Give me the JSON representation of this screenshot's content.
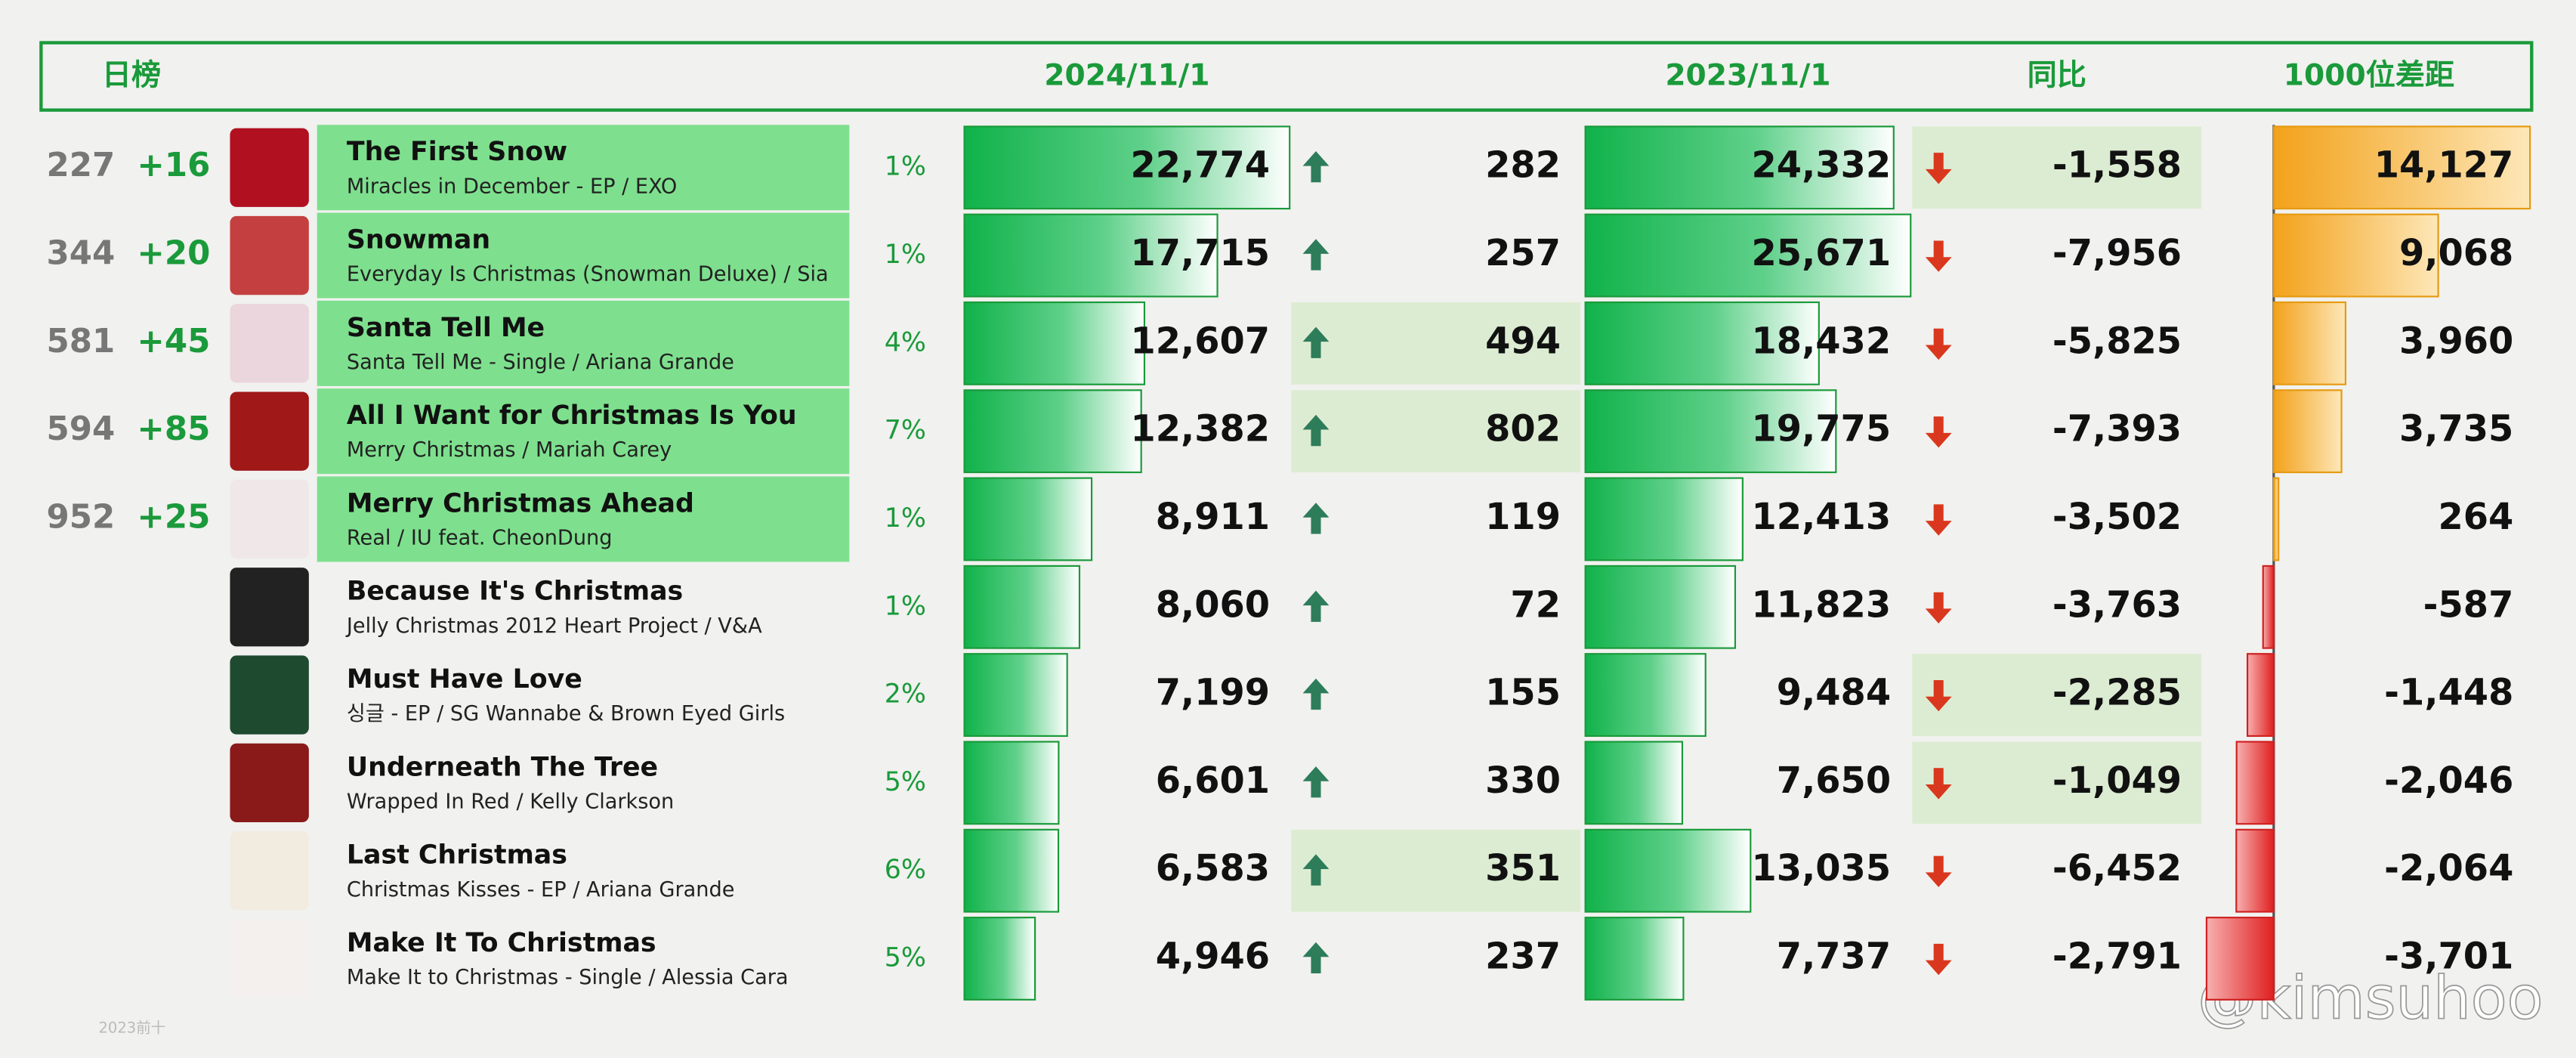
{
  "header": {
    "title": "日榜",
    "col_2024": "2024/11/1",
    "col_2023": "2023/11/1",
    "col_yoy": "同比",
    "col_gap": "1000位差距"
  },
  "table": {
    "rows": [
      {
        "rank": "227",
        "change": "+16",
        "title": "The First Snow",
        "subtitle": "Miracles in December - EP / EXO",
        "share": "1%",
        "plays_2024": {
          "value": 22774,
          "label": "22,774"
        },
        "delta": 282,
        "plays_2023": {
          "value": 24332,
          "label": "24,332"
        },
        "yoy": {
          "value": -1558,
          "label": "-1,558"
        },
        "gap": {
          "value": 14127,
          "label": "14,127"
        },
        "highlights": [
          "yoy"
        ]
      },
      {
        "rank": "344",
        "change": "+20",
        "title": "Snowman",
        "subtitle": "Everyday Is Christmas (Snowman Deluxe) / Sia",
        "share": "1%",
        "plays_2024": {
          "value": 17715,
          "label": "17,715"
        },
        "delta": 257,
        "plays_2023": {
          "value": 25671,
          "label": "25,671"
        },
        "yoy": {
          "value": -7956,
          "label": "-7,956"
        },
        "gap": {
          "value": 9068,
          "label": "9,068"
        },
        "highlights": []
      },
      {
        "rank": "581",
        "change": "+45",
        "title": "Santa Tell Me",
        "subtitle": "Santa Tell Me - Single / Ariana Grande",
        "share": "4%",
        "plays_2024": {
          "value": 12607,
          "label": "12,607"
        },
        "delta": 494,
        "plays_2023": {
          "value": 18432,
          "label": "18,432"
        },
        "yoy": {
          "value": -5825,
          "label": "-5,825"
        },
        "gap": {
          "value": 3960,
          "label": "3,960"
        },
        "highlights": [
          "delta"
        ]
      },
      {
        "rank": "594",
        "change": "+85",
        "title": "All I Want for Christmas Is You",
        "subtitle": "Merry Christmas / Mariah Carey",
        "share": "7%",
        "plays_2024": {
          "value": 12382,
          "label": "12,382"
        },
        "delta": 802,
        "plays_2023": {
          "value": 19775,
          "label": "19,775"
        },
        "yoy": {
          "value": -7393,
          "label": "-7,393"
        },
        "gap": {
          "value": 3735,
          "label": "3,735"
        },
        "highlights": [
          "delta"
        ]
      },
      {
        "rank": "952",
        "change": "+25",
        "title": "Merry Christmas Ahead",
        "subtitle": "Real / IU feat. CheonDung",
        "share": "1%",
        "plays_2024": {
          "value": 8911,
          "label": "8,911"
        },
        "delta": 119,
        "plays_2023": {
          "value": 12413,
          "label": "12,413"
        },
        "yoy": {
          "value": -3502,
          "label": "-3,502"
        },
        "gap": 264,
        "highlights": []
      },
      {
        "title": "Because It's Christmas",
        "subtitle": "Jelly Christmas 2012 Heart Project  / V&A",
        "share": "1%",
        "plays_2024": {
          "value": 8060,
          "label": "8,060"
        },
        "delta": 72,
        "plays_2023": {
          "value": 11823,
          "label": "11,823"
        },
        "yoy": {
          "value": -3763,
          "label": "-3,763"
        },
        "gap": -587,
        "highlights": []
      },
      {
        "title": "Must Have Love",
        "subtitle": "싱글 - EP / SG Wannabe & Brown Eyed Girls",
        "share": "2%",
        "plays_2024": {
          "value": 7199,
          "label": "7,199"
        },
        "delta": 155,
        "plays_2023": {
          "value": 9484,
          "label": "9,484"
        },
        "yoy": {
          "value": -2285,
          "label": "-2,285"
        },
        "gap": {
          "value": -1448,
          "label": "-1,448"
        },
        "highlights": [
          "yoy"
        ]
      },
      {
        "title": "Underneath The Tree",
        "subtitle": "Wrapped In Red / Kelly Clarkson",
        "share": "5%",
        "plays_2024": {
          "value": 6601,
          "label": "6,601"
        },
        "delta": 330,
        "plays_2023": {
          "value": 7650,
          "label": "7,650"
        },
        "yoy": {
          "value": -1049,
          "label": "-1,049"
        },
        "gap": {
          "value": -2046,
          "label": "-2,046"
        },
        "highlights": [
          "yoy"
        ]
      },
      {
        "title": "Last Christmas",
        "subtitle": "Christmas Kisses - EP / Ariana Grande",
        "share": "6%",
        "plays_2024": {
          "value": 6583,
          "label": "6,583"
        },
        "delta": 351,
        "plays_2023": {
          "value": 13035,
          "label": "13,035"
        },
        "yoy": {
          "value": -6452,
          "label": "-6,452"
        },
        "gap": {
          "value": -2064,
          "label": "-2,064"
        },
        "highlights": [
          "delta"
        ]
      },
      {
        "title": "Make It To Christmas",
        "subtitle": "Make It to Christmas - Single / Alessia Cara",
        "share": "5%",
        "plays_2024": {
          "value": 4946,
          "label": "4,946"
        },
        "delta": 237,
        "plays_2023": {
          "value": 7737,
          "label": "7,737"
        },
        "yoy": {
          "value": -2791,
          "label": "-2,791"
        },
        "gap": {
          "value": -3701,
          "label": "-3,701"
        },
        "highlights": []
      }
    ]
  },
  "footer": {
    "note": "2023前十",
    "watermark": "@kimsuhoo"
  }
}
